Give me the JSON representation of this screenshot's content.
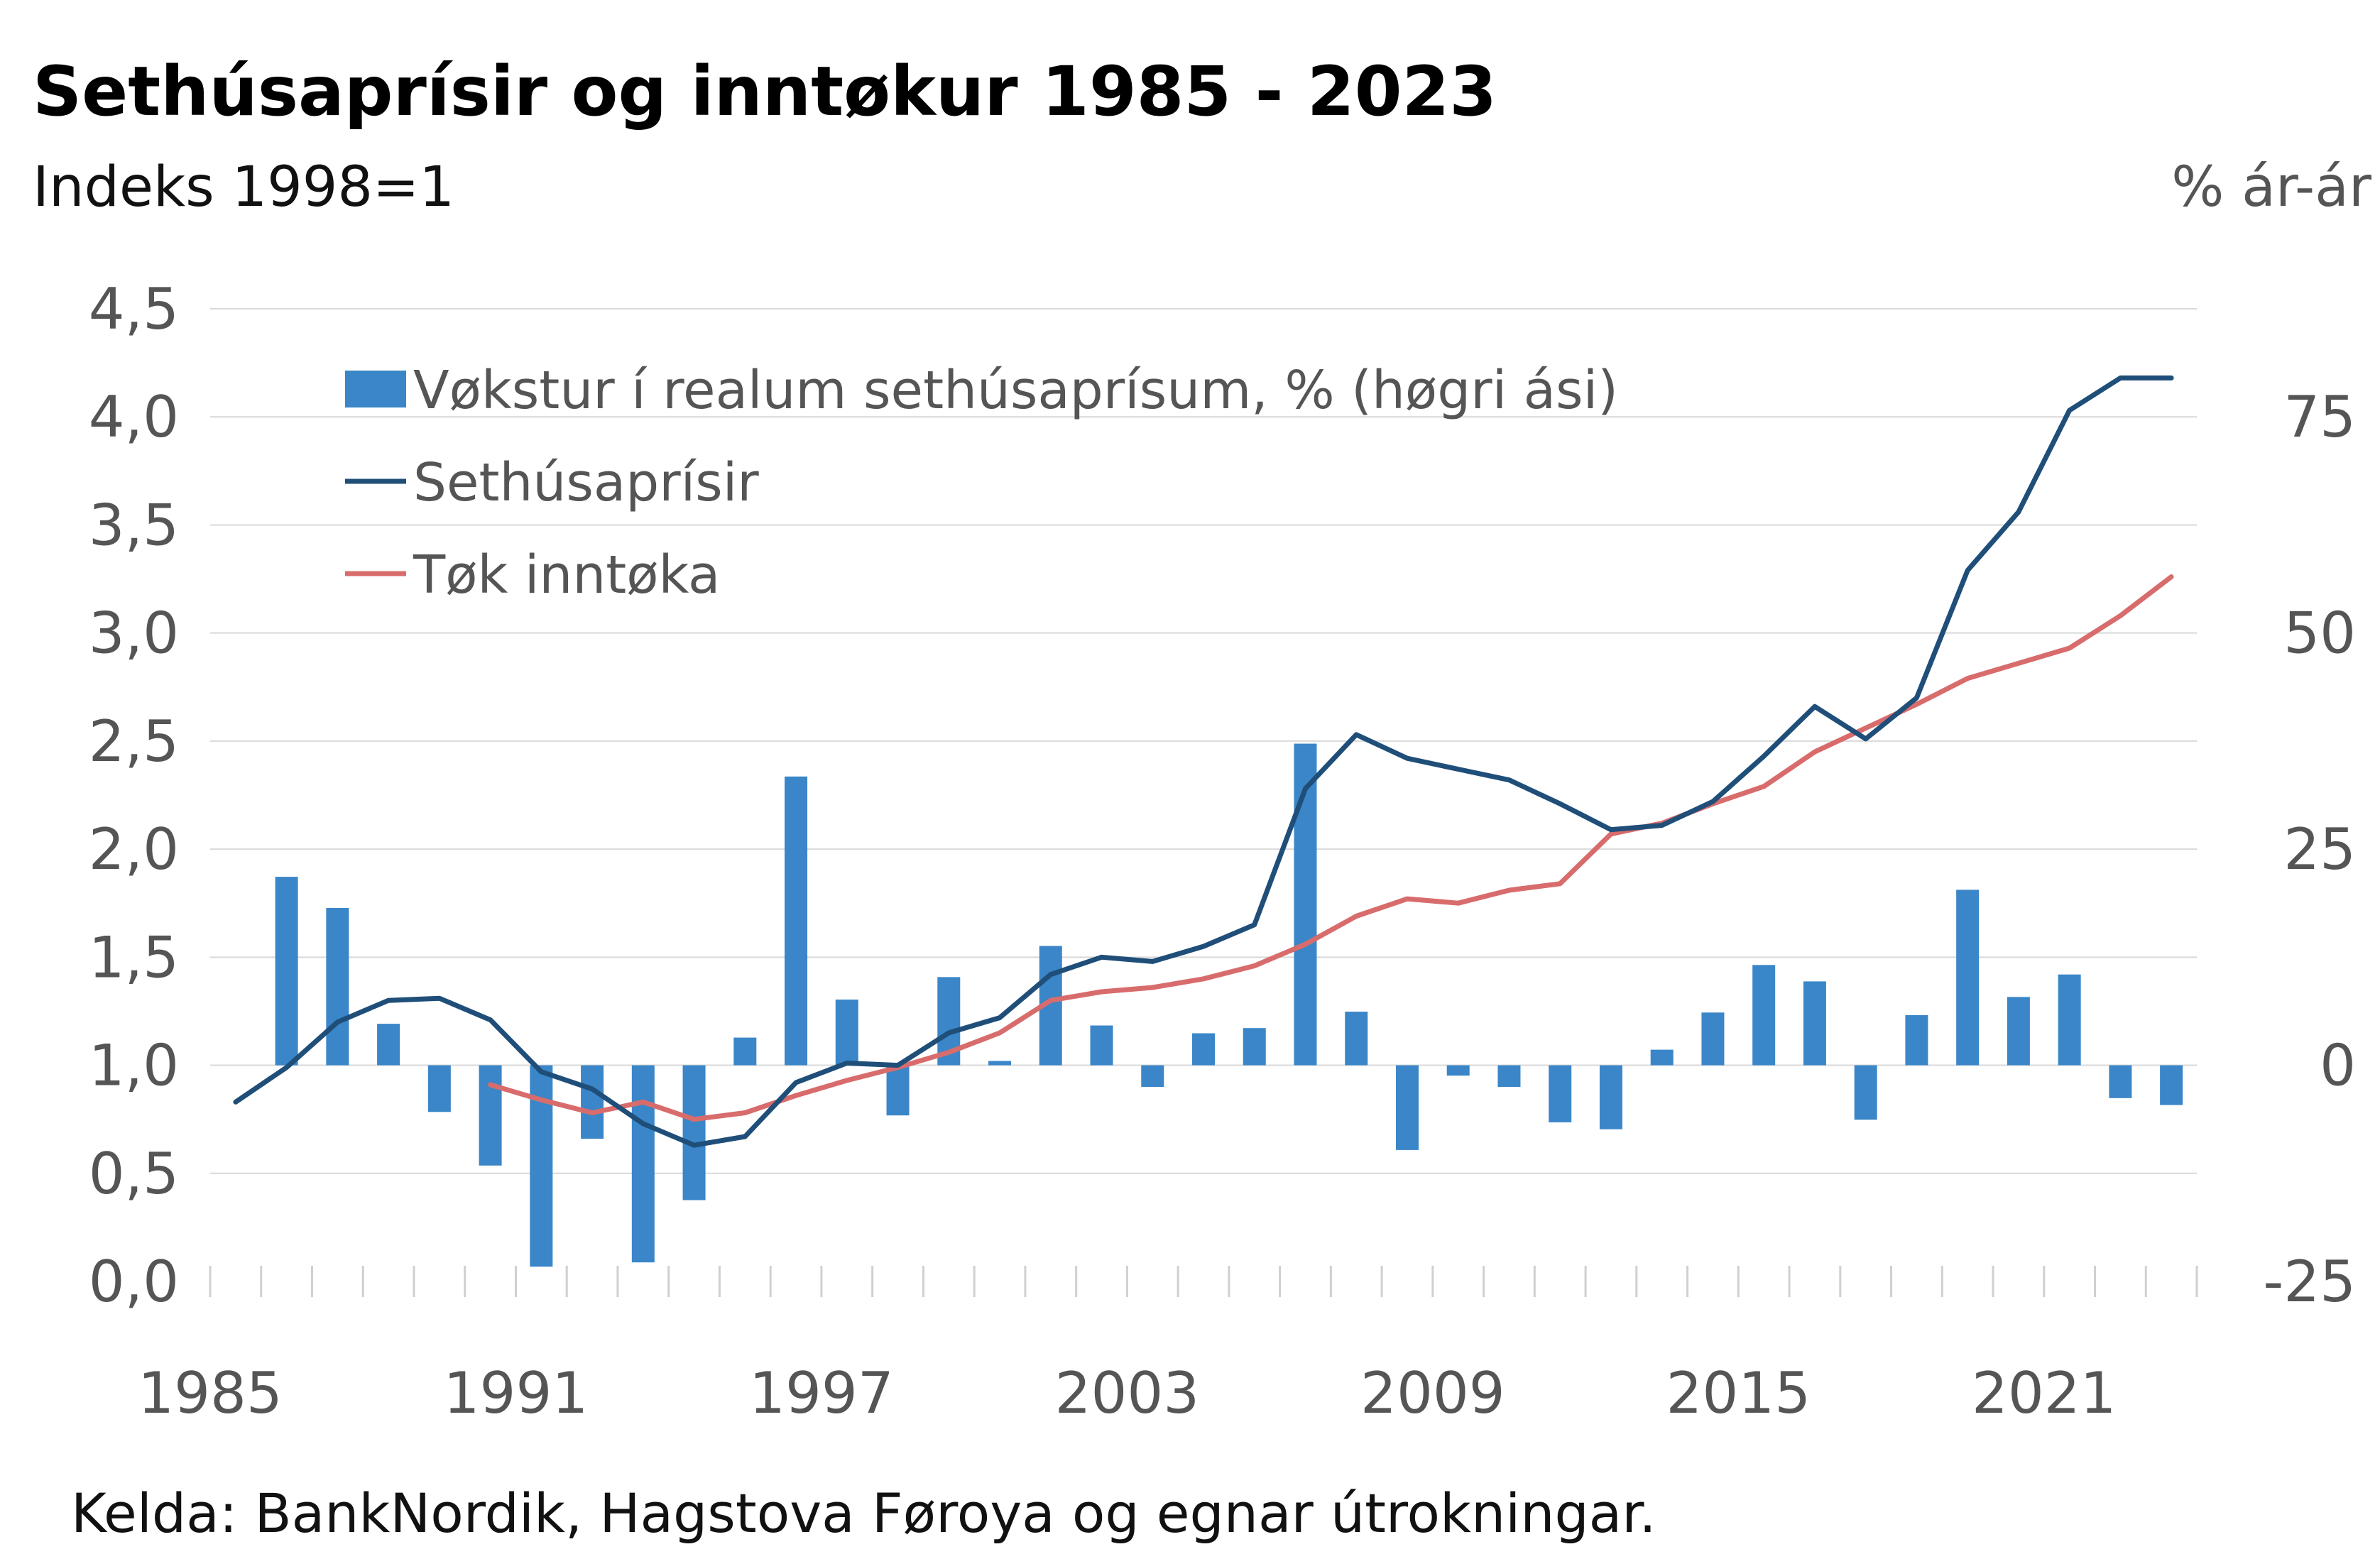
{
  "chart_data": {
    "type": "bar+line",
    "title": "Sethúsaprísir og inntøkur 1985 - 2023",
    "left_axis_label": "Indeks 1998=1",
    "right_axis_label": "% ár-ár",
    "source": "Kelda: BankNordik, Hagstova Føroya og egnar útrokningar.",
    "x": [
      1985,
      1986,
      1987,
      1988,
      1989,
      1990,
      1991,
      1992,
      1993,
      1994,
      1995,
      1996,
      1997,
      1998,
      1999,
      2000,
      2001,
      2002,
      2003,
      2004,
      2005,
      2006,
      2007,
      2008,
      2009,
      2010,
      2011,
      2012,
      2013,
      2014,
      2015,
      2016,
      2017,
      2018,
      2019,
      2020,
      2021,
      2022,
      2023
    ],
    "x_tick_labels": [
      "1985",
      "1991",
      "1997",
      "2003",
      "2009",
      "2015",
      "2021"
    ],
    "left_axis": {
      "min": 0,
      "max": 4.5,
      "ticks": [
        "0,0",
        "0,5",
        "1,0",
        "1,5",
        "2,0",
        "2,5",
        "3,0",
        "3,5",
        "4,0",
        "4,5"
      ]
    },
    "right_axis": {
      "min": -25,
      "max": 87.5,
      "ticks": [
        "-25",
        "0",
        "25",
        "50",
        "75"
      ]
    },
    "grid": "horizontal",
    "legend_position": "top-left",
    "series": [
      {
        "name": "Vøkstur í realum sethúsaprísum, % (høgri ási)",
        "type": "bar",
        "axis": "right",
        "color": "#3a86c8",
        "values": [
          null,
          21.8,
          18.2,
          4.8,
          -5.4,
          -11.6,
          -23.3,
          -8.5,
          -22.8,
          -15.6,
          3.2,
          33.4,
          7.6,
          -5.8,
          10.2,
          0.5,
          13.8,
          4.6,
          -2.5,
          3.7,
          4.3,
          37.2,
          6.2,
          -9.8,
          -1.2,
          -2.5,
          -6.6,
          -7.4,
          1.8,
          6.1,
          11.6,
          9.7,
          -6.3,
          5.8,
          20.3,
          7.9,
          10.5,
          -3.8,
          -4.6
        ]
      },
      {
        "name": "Sethúsaprísir",
        "type": "line",
        "axis": "left",
        "color": "#1f4e79",
        "values": [
          0.83,
          0.99,
          1.2,
          1.3,
          1.31,
          1.21,
          0.97,
          0.89,
          0.73,
          0.63,
          0.67,
          0.92,
          1.01,
          1.0,
          1.15,
          1.22,
          1.42,
          1.5,
          1.48,
          1.55,
          1.65,
          2.28,
          2.53,
          2.42,
          2.37,
          2.32,
          2.21,
          2.09,
          2.11,
          2.22,
          2.43,
          2.66,
          2.51,
          2.7,
          3.29,
          3.56,
          4.03,
          4.18,
          4.18
        ]
      },
      {
        "name": "Tøk inntøka",
        "type": "line",
        "axis": "left",
        "color": "#d86c6c",
        "values": [
          null,
          null,
          null,
          null,
          null,
          0.91,
          0.84,
          0.78,
          0.83,
          0.75,
          0.78,
          0.86,
          0.93,
          0.99,
          1.06,
          1.15,
          1.3,
          1.34,
          1.36,
          1.4,
          1.46,
          1.56,
          1.69,
          1.77,
          1.75,
          1.81,
          1.84,
          2.07,
          2.12,
          2.21,
          2.29,
          2.45,
          2.56,
          2.67,
          2.79,
          2.86,
          2.93,
          3.08,
          3.26
        ]
      }
    ]
  }
}
